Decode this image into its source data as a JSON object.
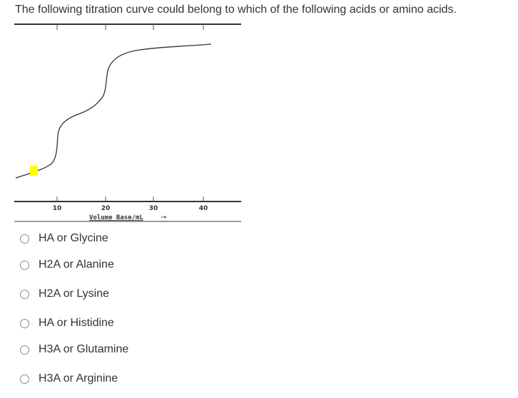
{
  "question": {
    "text": "The following titration curve could belong to which of the following acids or amino acids."
  },
  "figure": {
    "x_ticks": [
      "10",
      "20",
      "30",
      "40"
    ],
    "x_axis_label": "Volume Base/mL",
    "arrow": "→",
    "line_color": "#333333",
    "marker_color": "#ffff00"
  },
  "choices": [
    {
      "label": "HA or Glycine"
    },
    {
      "label": "H2A or Alanine"
    },
    {
      "label": "H2A or Lysine"
    },
    {
      "label": "HA or Histidine"
    },
    {
      "label": "H3A or Glutamine"
    },
    {
      "label": "H3A or Arginine"
    }
  ]
}
